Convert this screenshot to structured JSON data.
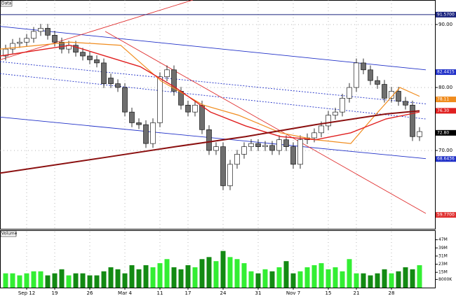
{
  "chart_data": [
    {
      "type": "candlestick",
      "title": "Data",
      "xlim": [
        -0.8,
        60
      ],
      "ylim": [
        57.56,
        93.89
      ],
      "xticks": [
        {
          "value": 3,
          "label": "Sep 12"
        },
        {
          "value": 7,
          "label": "19"
        },
        {
          "value": 12,
          "label": "26"
        },
        {
          "value": 17,
          "label": "Mar 4"
        },
        {
          "value": 22,
          "label": "11"
        },
        {
          "value": 26,
          "label": "17"
        },
        {
          "value": 31,
          "label": "24"
        },
        {
          "value": 36,
          "label": "31"
        },
        {
          "value": 41,
          "label": "Nov 7"
        },
        {
          "value": 46,
          "label": "15"
        },
        {
          "value": 50,
          "label": "21"
        },
        {
          "value": 55,
          "label": "28"
        }
      ],
      "yticks": [
        {
          "value": 90,
          "label": "90.00"
        },
        {
          "value": 80,
          "label": "80.00"
        },
        {
          "value": 70,
          "label": "70.00"
        }
      ],
      "grid": true,
      "up_color": "#ffffff",
      "down_color": "#6e6e6e",
      "open": [
        85.0,
        86.1,
        87.0,
        87.2,
        87.8,
        88.9,
        89.4,
        88.3,
        87.2,
        86.1,
        86.7,
        85.6,
        85.0,
        84.4,
        83.9,
        81.5,
        80.6,
        80.0,
        76.1,
        74.4,
        74.1,
        71.1,
        74.4,
        81.7,
        82.8,
        79.4,
        77.2,
        76.1,
        77.2,
        73.3,
        70.0,
        70.6,
        64.4,
        67.8,
        69.4,
        70.6,
        71.1,
        70.6,
        70.8,
        70.0,
        71.7,
        70.6,
        67.8,
        71.7,
        72.0,
        72.8,
        73.9,
        75.6,
        76.1,
        78.3,
        80.0,
        83.9,
        82.8,
        81.1,
        80.5,
        78.3,
        79.4,
        77.8,
        77.2,
        72.2
      ],
      "high": [
        86.8,
        87.7,
        87.9,
        88.5,
        89.6,
        90.1,
        90.1,
        89.0,
        87.9,
        87.4,
        87.4,
        86.3,
        85.7,
        85.1,
        84.6,
        82.2,
        81.3,
        80.7,
        76.8,
        75.1,
        74.8,
        75.1,
        82.4,
        83.5,
        83.5,
        80.1,
        77.9,
        77.9,
        77.9,
        74.0,
        71.3,
        71.3,
        68.5,
        70.1,
        71.3,
        71.8,
        71.8,
        71.5,
        71.5,
        72.4,
        72.4,
        71.3,
        72.4,
        72.7,
        73.5,
        74.6,
        76.3,
        76.8,
        79.0,
        80.7,
        84.6,
        84.6,
        83.5,
        81.8,
        81.2,
        80.1,
        80.1,
        78.5,
        77.9,
        73.7
      ],
      "low": [
        84.3,
        85.4,
        86.3,
        86.5,
        87.1,
        88.2,
        87.6,
        86.5,
        85.4,
        85.4,
        84.9,
        84.3,
        83.7,
        83.2,
        79.9,
        79.9,
        79.3,
        75.4,
        73.7,
        73.4,
        70.4,
        70.4,
        73.7,
        81.0,
        78.7,
        76.5,
        75.4,
        75.4,
        72.6,
        69.3,
        69.3,
        63.7,
        63.7,
        67.1,
        68.7,
        69.9,
        69.9,
        69.9,
        69.3,
        69.3,
        69.9,
        67.1,
        67.1,
        71.0,
        71.3,
        72.1,
        73.2,
        74.9,
        75.4,
        77.6,
        79.3,
        82.1,
        80.4,
        79.8,
        77.6,
        77.6,
        77.1,
        76.5,
        71.5,
        71.5
      ],
      "close": [
        86.1,
        87.0,
        87.2,
        87.8,
        88.9,
        89.4,
        88.3,
        87.2,
        86.1,
        86.7,
        85.6,
        85.0,
        84.4,
        83.9,
        80.6,
        80.6,
        80.0,
        76.1,
        74.4,
        74.1,
        71.1,
        74.4,
        81.7,
        82.8,
        79.4,
        77.2,
        76.1,
        77.2,
        73.3,
        70.0,
        70.6,
        64.4,
        67.8,
        69.4,
        70.6,
        71.1,
        70.6,
        70.8,
        70.0,
        71.7,
        70.6,
        67.8,
        71.7,
        72.0,
        72.8,
        73.9,
        75.6,
        76.1,
        78.3,
        80.0,
        83.9,
        82.8,
        81.1,
        80.5,
        78.3,
        79.4,
        77.8,
        77.2,
        72.2,
        73.0
      ],
      "overlays": [
        {
          "color": "#f08c1e",
          "width": 1.2,
          "x": [
            -0.8,
            9.2,
            16.4,
            22.2,
            28.2,
            33.2,
            39.2,
            44.2,
            49.2,
            52.2,
            56.2,
            59.0
          ],
          "values": [
            86.1,
            87.2,
            86.7,
            81.0,
            77.2,
            75.6,
            72.8,
            71.7,
            71.1,
            75.0,
            80.0,
            78.6
          ]
        },
        {
          "color": "#e02020",
          "width": 1.4,
          "x": [
            -0.8,
            9.2,
            19.2,
            24.2,
            29.2,
            34.2,
            39.2,
            44.2,
            49.2,
            54.2,
            59.0
          ],
          "values": [
            85.0,
            86.7,
            83.3,
            80.0,
            76.1,
            73.9,
            72.2,
            71.7,
            72.8,
            75.0,
            76.1
          ]
        },
        {
          "color": "#8b1010",
          "width": 2,
          "x": [
            -0.8,
            14.2,
            24.2,
            34.2,
            44.2,
            54.2,
            59.0
          ],
          "values": [
            66.4,
            68.9,
            70.6,
            72.2,
            74.1,
            75.8,
            76.3
          ]
        }
      ],
      "trendlines": [
        {
          "color": "#2030c8",
          "dash": "",
          "x": [
            -0.8,
            59.9
          ],
          "values": [
            89.7,
            82.8
          ]
        },
        {
          "color": "#2030c8",
          "dash": "",
          "x": [
            -0.8,
            59.9
          ],
          "values": [
            75.3,
            68.7
          ]
        },
        {
          "color": "#2030c8",
          "dash": "2,2",
          "x": [
            -0.8,
            59.9
          ],
          "values": [
            84.1,
            77.4
          ]
        },
        {
          "color": "#2030c8",
          "dash": "2,2",
          "x": [
            -0.8,
            59.9
          ],
          "values": [
            82.2,
            75.0
          ]
        },
        {
          "color": "#e03030",
          "dash": "",
          "x": [
            -0.8,
            26.7
          ],
          "values": [
            84.4,
            93.89
          ]
        },
        {
          "color": "#e03030",
          "dash": "",
          "x": [
            14.2,
            59.9
          ],
          "values": [
            88.9,
            60.0
          ]
        }
      ],
      "price_markers": [
        {
          "value": 91.57,
          "label": "91.5700",
          "color": "#1a237e",
          "level_line": true
        },
        {
          "value": 82.44,
          "label": "82.4415",
          "color": "#2030c8",
          "level_line": false
        },
        {
          "value": 78.11,
          "label": "78.11",
          "color": "#f08c1e",
          "level_line": false
        },
        {
          "value": 76.3,
          "label": "76.30",
          "color": "#e02020",
          "level_line": false
        },
        {
          "value": 72.8,
          "label": "72.80",
          "color": "#000000",
          "level_line": false
        },
        {
          "value": 68.6436,
          "label": "68.6436",
          "color": "#2030c8",
          "level_line": false
        },
        {
          "value": 59.77,
          "label": "59.7700",
          "color": "#e03030",
          "level_line": false
        }
      ]
    },
    {
      "type": "bar",
      "title": "Volume",
      "ylim": [
        0,
        55
      ],
      "yticks": [
        {
          "value": 47,
          "label": "47M"
        },
        {
          "value": 39,
          "label": "39M"
        },
        {
          "value": 31,
          "label": "31M"
        },
        {
          "value": 23,
          "label": "23M"
        },
        {
          "value": 15,
          "label": "15M"
        },
        {
          "value": 8,
          "label": "8000K"
        }
      ],
      "up_color": "#33ee33",
      "down_color": "#138a13",
      "values": [
        14,
        14,
        12,
        14,
        16,
        16,
        12,
        14,
        18,
        12,
        14,
        14,
        12,
        12,
        16,
        20,
        18,
        14,
        22,
        18,
        22,
        20,
        24,
        28,
        20,
        18,
        22,
        20,
        28,
        30,
        26,
        36,
        30,
        28,
        24,
        16,
        14,
        18,
        16,
        20,
        26,
        14,
        16,
        20,
        22,
        24,
        18,
        20,
        16,
        28,
        14,
        14,
        12,
        14,
        18,
        14,
        16,
        20,
        18,
        22
      ]
    }
  ]
}
